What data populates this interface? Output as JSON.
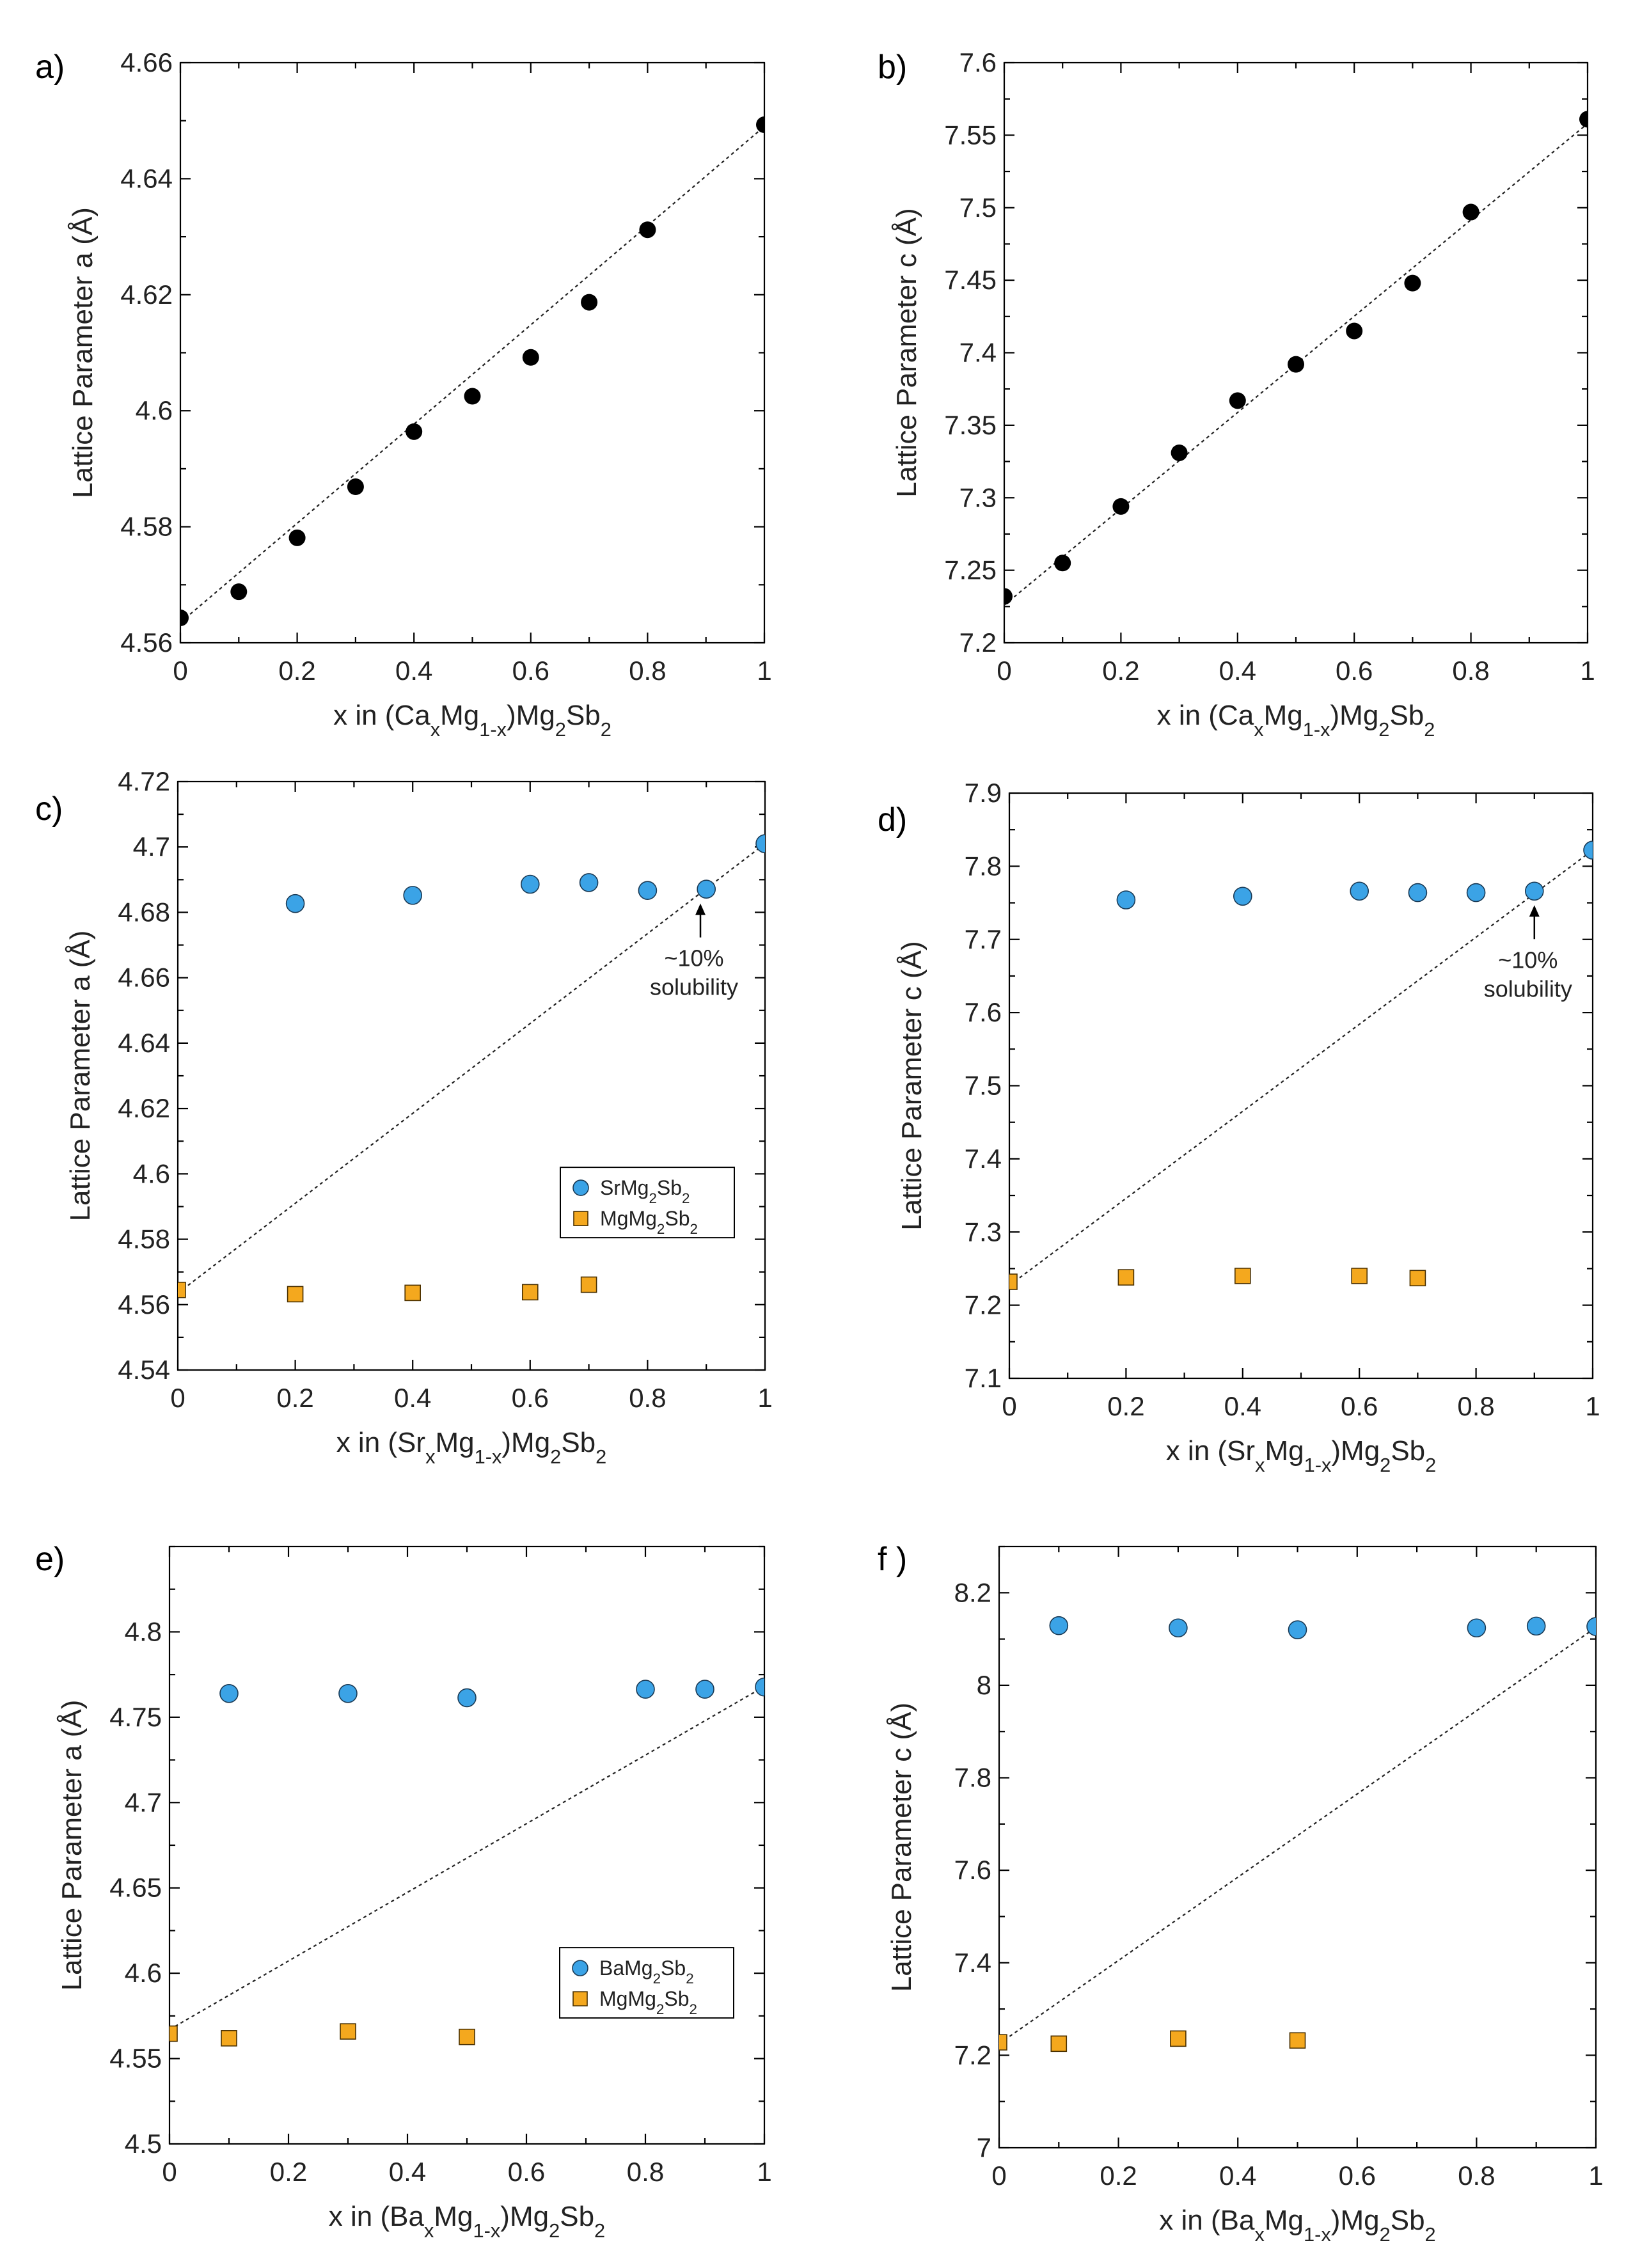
{
  "colors": {
    "black": "#000000",
    "sr_ba": "#3ba3e6",
    "mg": "#f4a81e"
  },
  "chart_data": [
    {
      "type": "scatter",
      "panel": "a)",
      "xlabel": "x in (CaxMg1-x)Mg2Sb2",
      "xlabel_parts": {
        "pre": "x in (Ca",
        "sub1": "x",
        "mid": "Mg",
        "sub2": "1-x",
        "post": ")Mg",
        "sub3": "2",
        "post2": "Sb",
        "sub4": "2"
      },
      "ylabel": "Lattice Parameter a (Å)",
      "xlim": [
        0,
        1
      ],
      "ylim": [
        4.56,
        4.66
      ],
      "xticks": [
        "0",
        "0.2",
        "0.4",
        "0.6",
        "0.8",
        "1"
      ],
      "xtickvals": [
        0,
        0.2,
        0.4,
        0.6,
        0.8,
        1
      ],
      "yticks": [
        "4.56",
        "4.58",
        "4.6",
        "4.62",
        "4.64",
        "4.66"
      ],
      "ytickvals": [
        4.56,
        4.58,
        4.6,
        4.62,
        4.64,
        4.66
      ],
      "fit": [
        [
          0,
          4.5635
        ],
        [
          1,
          4.649
        ]
      ],
      "series": [
        {
          "name": "Ca",
          "marker": "circle",
          "color": "#000000",
          "x": [
            0,
            0.1,
            0.2,
            0.3,
            0.4,
            0.5,
            0.6,
            0.7,
            0.8,
            1
          ],
          "y": [
            4.5643,
            4.5688,
            4.5781,
            4.5869,
            4.5964,
            4.6025,
            4.6092,
            4.6187,
            4.6312,
            4.6493
          ]
        }
      ]
    },
    {
      "type": "scatter",
      "panel": "b)",
      "xlabel": "x in (CaxMg1-x)Mg2Sb2",
      "xlabel_parts": {
        "pre": "x in (Ca",
        "sub1": "x",
        "mid": "Mg",
        "sub2": "1-x",
        "post": ")Mg",
        "sub3": "2",
        "post2": "Sb",
        "sub4": "2"
      },
      "ylabel": "Lattice Parameter c (Å)",
      "xlim": [
        0,
        1
      ],
      "ylim": [
        7.2,
        7.6
      ],
      "xticks": [
        "0",
        "0.2",
        "0.4",
        "0.6",
        "0.8",
        "1"
      ],
      "xtickvals": [
        0,
        0.2,
        0.4,
        0.6,
        0.8,
        1
      ],
      "yticks": [
        "7.2",
        "7.25",
        "7.3",
        "7.35",
        "7.4",
        "7.45",
        "7.5",
        "7.55",
        "7.6"
      ],
      "ytickvals": [
        7.2,
        7.25,
        7.3,
        7.35,
        7.4,
        7.45,
        7.5,
        7.55,
        7.6
      ],
      "fit": [
        [
          0,
          7.226
        ],
        [
          1,
          7.558
        ]
      ],
      "series": [
        {
          "name": "Ca",
          "marker": "circle",
          "color": "#000000",
          "x": [
            0,
            0.1,
            0.2,
            0.3,
            0.4,
            0.5,
            0.6,
            0.7,
            0.8,
            1
          ],
          "y": [
            7.232,
            7.255,
            7.294,
            7.331,
            7.367,
            7.392,
            7.415,
            7.448,
            7.497,
            7.561
          ]
        }
      ]
    },
    {
      "type": "scatter",
      "panel": "c)",
      "xlabel": "x in (SrxMg1-x)Mg2Sb2",
      "xlabel_parts": {
        "pre": "x in (Sr",
        "sub1": "x",
        "mid": "Mg",
        "sub2": "1-x",
        "post": ")Mg",
        "sub3": "2",
        "post2": "Sb",
        "sub4": "2"
      },
      "ylabel": "Lattice Parameter a (Å)",
      "xlim": [
        0,
        1
      ],
      "ylim": [
        4.54,
        4.72
      ],
      "xticks": [
        "0",
        "0.2",
        "0.4",
        "0.6",
        "0.8",
        "1"
      ],
      "xtickvals": [
        0,
        0.2,
        0.4,
        0.6,
        0.8,
        1
      ],
      "yticks": [
        "4.54",
        "4.56",
        "4.58",
        "4.6",
        "4.62",
        "4.64",
        "4.66",
        "4.68",
        "4.7",
        "4.72"
      ],
      "ytickvals": [
        4.54,
        4.56,
        4.58,
        4.6,
        4.62,
        4.64,
        4.66,
        4.68,
        4.7,
        4.72
      ],
      "fit": [
        [
          0,
          4.5635
        ],
        [
          1,
          4.701
        ]
      ],
      "legend": {
        "position": "bottom-right",
        "entries": [
          {
            "label": "SrMg2Sb2",
            "parts": [
              "SrMg",
              "2",
              "Sb",
              "2"
            ]
          },
          {
            "label": "MgMg2Sb2",
            "parts": [
              "MgMg",
              "2",
              "Sb",
              "2"
            ]
          }
        ]
      },
      "annotation": {
        "line1": "~10%",
        "line2": "solubility",
        "x": 0.89,
        "y": 4.687
      },
      "series": [
        {
          "name": "SrMg2Sb2",
          "marker": "circle",
          "color": "#3ba3e6",
          "x": [
            0.2,
            0.4,
            0.6,
            0.7,
            0.8,
            0.9,
            1
          ],
          "y": [
            4.6827,
            4.6852,
            4.6886,
            4.6891,
            4.6867,
            4.6871,
            4.701
          ]
        },
        {
          "name": "MgMg2Sb2",
          "marker": "square",
          "color": "#f4a81e",
          "x": [
            0,
            0.2,
            0.4,
            0.6,
            0.7
          ],
          "y": [
            4.5645,
            4.5632,
            4.5636,
            4.5638,
            4.5661
          ]
        }
      ]
    },
    {
      "type": "scatter",
      "panel": "d)",
      "xlabel": "x in (SrxMg1-x)Mg2Sb2",
      "xlabel_parts": {
        "pre": "x in (Sr",
        "sub1": "x",
        "mid": "Mg",
        "sub2": "1-x",
        "post": ")Mg",
        "sub3": "2",
        "post2": "Sb",
        "sub4": "2"
      },
      "ylabel": "Lattice Parameter c (Å)",
      "xlim": [
        0,
        1
      ],
      "ylim": [
        7.1,
        7.9
      ],
      "xticks": [
        "0",
        "0.2",
        "0.4",
        "0.6",
        "0.8",
        "1"
      ],
      "xtickvals": [
        0,
        0.2,
        0.4,
        0.6,
        0.8,
        1
      ],
      "yticks": [
        "7.1",
        "7.2",
        "7.3",
        "7.4",
        "7.5",
        "7.6",
        "7.7",
        "7.8",
        "7.9"
      ],
      "ytickvals": [
        7.1,
        7.2,
        7.3,
        7.4,
        7.5,
        7.6,
        7.7,
        7.8,
        7.9
      ],
      "fit": [
        [
          0,
          7.227
        ],
        [
          1,
          7.822
        ]
      ],
      "annotation": {
        "line1": "~10%",
        "line2": "solubility",
        "x": 0.9,
        "y": 7.766
      },
      "series": [
        {
          "name": "SrMg2Sb2",
          "marker": "circle",
          "color": "#3ba3e6",
          "x": [
            0.2,
            0.4,
            0.6,
            0.7,
            0.8,
            0.9,
            1
          ],
          "y": [
            7.754,
            7.759,
            7.766,
            7.764,
            7.764,
            7.766,
            7.822
          ]
        },
        {
          "name": "MgMg2Sb2",
          "marker": "square",
          "color": "#f4a81e",
          "x": [
            0,
            0.2,
            0.4,
            0.6,
            0.7
          ],
          "y": [
            7.232,
            7.238,
            7.24,
            7.24,
            7.237
          ]
        }
      ]
    },
    {
      "type": "scatter",
      "panel": "e)",
      "xlabel": "x in (BaxMg1-x)Mg2Sb2",
      "xlabel_parts": {
        "pre": "x in (Ba",
        "sub1": "x",
        "mid": "Mg",
        "sub2": "1-x",
        "post": ")Mg",
        "sub3": "2",
        "post2": "Sb",
        "sub4": "2"
      },
      "ylabel": "Lattice Parameter a (Å)",
      "xlim": [
        0,
        1
      ],
      "ylim": [
        4.5,
        4.85
      ],
      "xticks": [
        "0",
        "0.2",
        "0.4",
        "0.6",
        "0.8",
        "1"
      ],
      "xtickvals": [
        0,
        0.2,
        0.4,
        0.6,
        0.8,
        1
      ],
      "yticks": [
        "4.5",
        "4.55",
        "4.6",
        "4.65",
        "4.7",
        "4.75",
        "4.8"
      ],
      "ytickvals": [
        4.5,
        4.55,
        4.6,
        4.65,
        4.7,
        4.75,
        4.8
      ],
      "fit": [
        [
          0,
          4.567
        ],
        [
          1,
          4.768
        ]
      ],
      "legend": {
        "position": "bottom-right",
        "entries": [
          {
            "label": "BaMg2Sb2",
            "parts": [
              "BaMg",
              "2",
              "Sb",
              "2"
            ]
          },
          {
            "label": "MgMg2Sb2",
            "parts": [
              "MgMg",
              "2",
              "Sb",
              "2"
            ]
          }
        ]
      },
      "series": [
        {
          "name": "BaMg2Sb2",
          "marker": "circle",
          "color": "#3ba3e6",
          "x": [
            0.1,
            0.3,
            0.5,
            0.8,
            0.9,
            1
          ],
          "y": [
            4.7639,
            4.7639,
            4.7614,
            4.7664,
            4.7664,
            4.7677
          ]
        },
        {
          "name": "MgMg2Sb2",
          "marker": "square",
          "color": "#f4a81e",
          "x": [
            0,
            0.1,
            0.3,
            0.5
          ],
          "y": [
            4.5646,
            4.5619,
            4.5659,
            4.5627
          ]
        }
      ]
    },
    {
      "type": "scatter",
      "panel": "f )",
      "xlabel": "x in (BaxMg1-x)Mg2Sb2",
      "xlabel_parts": {
        "pre": "x in (Ba",
        "sub1": "x",
        "mid": "Mg",
        "sub2": "1-x",
        "post": ")Mg",
        "sub3": "2",
        "post2": "Sb",
        "sub4": "2"
      },
      "ylabel": "Lattice Parameter c (Å)",
      "xlim": [
        0,
        1
      ],
      "ylim": [
        7.0,
        8.3
      ],
      "xticks": [
        "0",
        "0.2",
        "0.4",
        "0.6",
        "0.8",
        "1"
      ],
      "xtickvals": [
        0,
        0.2,
        0.4,
        0.6,
        0.8,
        1
      ],
      "yticks": [
        "7",
        "7.2",
        "7.4",
        "7.6",
        "7.8",
        "8",
        "8.2"
      ],
      "ytickvals": [
        7.0,
        7.2,
        7.4,
        7.6,
        7.8,
        8.0,
        8.2
      ],
      "fit": [
        [
          0,
          7.225
        ],
        [
          1,
          8.125
        ]
      ],
      "series": [
        {
          "name": "BaMg2Sb2",
          "marker": "circle",
          "color": "#3ba3e6",
          "x": [
            0.1,
            0.3,
            0.5,
            0.8,
            0.9,
            1
          ],
          "y": [
            8.129,
            8.124,
            8.12,
            8.124,
            8.128,
            8.127
          ]
        },
        {
          "name": "MgMg2Sb2",
          "marker": "square",
          "color": "#f4a81e",
          "x": [
            0,
            0.1,
            0.3,
            0.5
          ],
          "y": [
            7.228,
            7.225,
            7.236,
            7.232
          ]
        }
      ]
    }
  ]
}
